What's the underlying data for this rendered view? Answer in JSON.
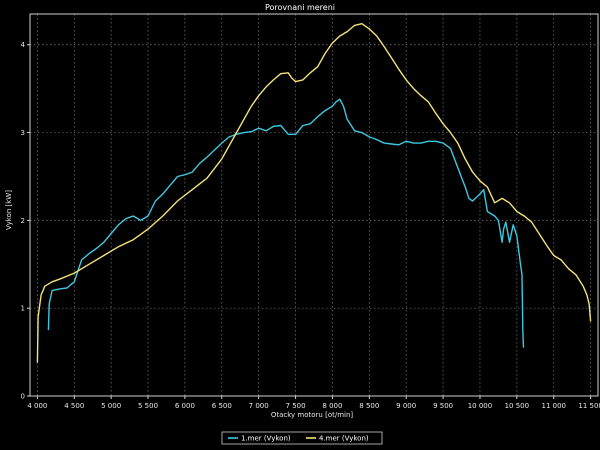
{
  "chart_data": {
    "type": "line",
    "title": "Porovnani mereni",
    "xlabel": "Otacky motoru [ot/min]",
    "ylabel": "Vykon [kW]",
    "xlim": [
      3900,
      11600
    ],
    "ylim": [
      0,
      4.35
    ],
    "x_ticks": [
      4000,
      4500,
      5000,
      5500,
      6000,
      6500,
      7000,
      7500,
      8000,
      8500,
      9000,
      9500,
      10000,
      10500,
      11000,
      11500
    ],
    "x_tick_labels": [
      "4 000",
      "4 500",
      "5 000",
      "5 500",
      "6 000",
      "6 500",
      "7 000",
      "7 500",
      "8 000",
      "8 500",
      "9 000",
      "9 500",
      "10 000",
      "10 500",
      "11 000",
      "11 500"
    ],
    "y_ticks": [
      0,
      1,
      2,
      3,
      4
    ],
    "y_tick_labels": [
      "0",
      "1",
      "2",
      "3",
      "4"
    ],
    "grid": true,
    "legend_position": "bottom-center",
    "series": [
      {
        "name": "1.mer  (Vykon)",
        "color": "#3ec8e0",
        "points": [
          [
            4150,
            0.75
          ],
          [
            4160,
            1.05
          ],
          [
            4200,
            1.2
          ],
          [
            4300,
            1.22
          ],
          [
            4400,
            1.23
          ],
          [
            4500,
            1.3
          ],
          [
            4600,
            1.55
          ],
          [
            4700,
            1.62
          ],
          [
            4800,
            1.68
          ],
          [
            4900,
            1.75
          ],
          [
            5000,
            1.85
          ],
          [
            5100,
            1.95
          ],
          [
            5200,
            2.02
          ],
          [
            5300,
            2.05
          ],
          [
            5400,
            2.0
          ],
          [
            5500,
            2.05
          ],
          [
            5600,
            2.22
          ],
          [
            5700,
            2.3
          ],
          [
            5800,
            2.4
          ],
          [
            5900,
            2.5
          ],
          [
            6000,
            2.52
          ],
          [
            6100,
            2.55
          ],
          [
            6200,
            2.65
          ],
          [
            6300,
            2.72
          ],
          [
            6400,
            2.8
          ],
          [
            6500,
            2.88
          ],
          [
            6600,
            2.95
          ],
          [
            6700,
            2.98
          ],
          [
            6800,
            3.0
          ],
          [
            6900,
            3.01
          ],
          [
            7000,
            3.05
          ],
          [
            7100,
            3.02
          ],
          [
            7200,
            3.07
          ],
          [
            7300,
            3.08
          ],
          [
            7400,
            2.98
          ],
          [
            7500,
            2.98
          ],
          [
            7600,
            3.08
          ],
          [
            7700,
            3.1
          ],
          [
            7800,
            3.18
          ],
          [
            7900,
            3.25
          ],
          [
            8000,
            3.3
          ],
          [
            8050,
            3.35
          ],
          [
            8100,
            3.38
          ],
          [
            8150,
            3.3
          ],
          [
            8200,
            3.15
          ],
          [
            8300,
            3.02
          ],
          [
            8400,
            3.0
          ],
          [
            8500,
            2.95
          ],
          [
            8600,
            2.92
          ],
          [
            8700,
            2.88
          ],
          [
            8800,
            2.87
          ],
          [
            8900,
            2.86
          ],
          [
            9000,
            2.9
          ],
          [
            9100,
            2.88
          ],
          [
            9200,
            2.88
          ],
          [
            9300,
            2.9
          ],
          [
            9400,
            2.9
          ],
          [
            9500,
            2.88
          ],
          [
            9600,
            2.82
          ],
          [
            9700,
            2.6
          ],
          [
            9800,
            2.38
          ],
          [
            9850,
            2.25
          ],
          [
            9900,
            2.22
          ],
          [
            10000,
            2.3
          ],
          [
            10050,
            2.35
          ],
          [
            10100,
            2.1
          ],
          [
            10200,
            2.05
          ],
          [
            10250,
            2.0
          ],
          [
            10300,
            1.75
          ],
          [
            10320,
            1.9
          ],
          [
            10350,
            1.98
          ],
          [
            10400,
            1.75
          ],
          [
            10450,
            1.95
          ],
          [
            10500,
            1.82
          ],
          [
            10550,
            1.5
          ],
          [
            10570,
            1.38
          ],
          [
            10580,
            0.75
          ],
          [
            10590,
            0.55
          ]
        ]
      },
      {
        "name": "4.mer  (Vykon)",
        "color": "#f4e27a",
        "points": [
          [
            4000,
            0.38
          ],
          [
            4010,
            0.9
          ],
          [
            4050,
            1.15
          ],
          [
            4100,
            1.25
          ],
          [
            4200,
            1.3
          ],
          [
            4300,
            1.33
          ],
          [
            4500,
            1.4
          ],
          [
            4700,
            1.5
          ],
          [
            4900,
            1.6
          ],
          [
            5100,
            1.7
          ],
          [
            5300,
            1.78
          ],
          [
            5500,
            1.9
          ],
          [
            5700,
            2.05
          ],
          [
            5900,
            2.22
          ],
          [
            6100,
            2.35
          ],
          [
            6300,
            2.48
          ],
          [
            6500,
            2.7
          ],
          [
            6600,
            2.85
          ],
          [
            6700,
            3.0
          ],
          [
            6800,
            3.15
          ],
          [
            6900,
            3.3
          ],
          [
            7000,
            3.42
          ],
          [
            7100,
            3.52
          ],
          [
            7200,
            3.6
          ],
          [
            7300,
            3.67
          ],
          [
            7400,
            3.68
          ],
          [
            7450,
            3.62
          ],
          [
            7500,
            3.58
          ],
          [
            7600,
            3.6
          ],
          [
            7700,
            3.68
          ],
          [
            7800,
            3.75
          ],
          [
            7900,
            3.9
          ],
          [
            8000,
            4.02
          ],
          [
            8100,
            4.1
          ],
          [
            8200,
            4.15
          ],
          [
            8300,
            4.22
          ],
          [
            8400,
            4.24
          ],
          [
            8500,
            4.18
          ],
          [
            8600,
            4.1
          ],
          [
            8700,
            3.98
          ],
          [
            8800,
            3.85
          ],
          [
            8900,
            3.72
          ],
          [
            9000,
            3.6
          ],
          [
            9100,
            3.5
          ],
          [
            9200,
            3.42
          ],
          [
            9300,
            3.35
          ],
          [
            9400,
            3.22
          ],
          [
            9500,
            3.1
          ],
          [
            9600,
            3.0
          ],
          [
            9700,
            2.88
          ],
          [
            9800,
            2.7
          ],
          [
            9900,
            2.55
          ],
          [
            10000,
            2.45
          ],
          [
            10100,
            2.38
          ],
          [
            10200,
            2.2
          ],
          [
            10300,
            2.25
          ],
          [
            10400,
            2.2
          ],
          [
            10500,
            2.1
          ],
          [
            10600,
            2.05
          ],
          [
            10700,
            1.98
          ],
          [
            10800,
            1.85
          ],
          [
            10900,
            1.72
          ],
          [
            11000,
            1.6
          ],
          [
            11100,
            1.55
          ],
          [
            11200,
            1.45
          ],
          [
            11300,
            1.38
          ],
          [
            11400,
            1.25
          ],
          [
            11450,
            1.15
          ],
          [
            11480,
            1.05
          ],
          [
            11500,
            0.85
          ]
        ]
      }
    ]
  }
}
